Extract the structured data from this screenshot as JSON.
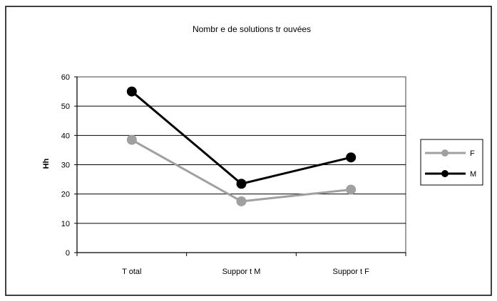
{
  "chart_data": {
    "type": "line",
    "title": "Nombr e de solutions tr ouvées",
    "xlabel": "",
    "ylabel": "Hh",
    "categories": [
      "T otal",
      "Suppor t M",
      "Suppor t F"
    ],
    "ylim": [
      0,
      60
    ],
    "yticks": [
      0,
      10,
      20,
      30,
      40,
      50,
      60
    ],
    "grid": true,
    "legend_position": "right",
    "series": [
      {
        "name": "F",
        "values": [
          38.5,
          17.5,
          21.5
        ],
        "color": "#a0a0a0"
      },
      {
        "name": "M",
        "values": [
          55,
          23.5,
          32.5
        ],
        "color": "#000000"
      }
    ]
  }
}
